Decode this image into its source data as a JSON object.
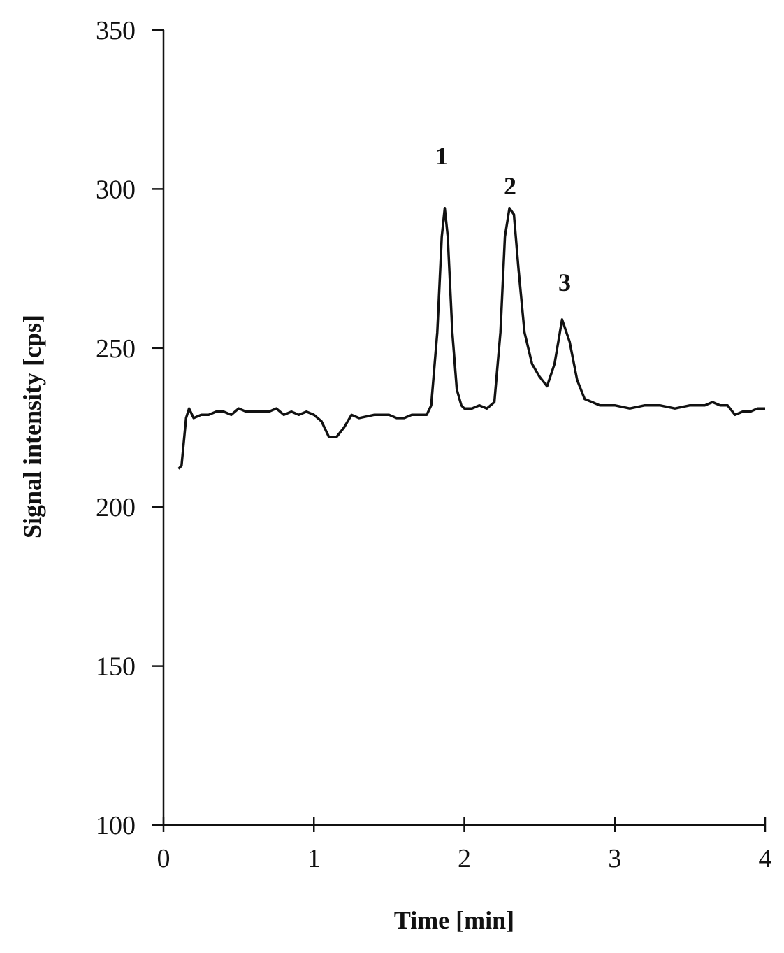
{
  "chart_data": {
    "type": "line",
    "x_label": "Time [min]",
    "y_label": "Signal intensity [cps]",
    "annotations": [
      "1",
      "2",
      "3"
    ],
    "xlim": [
      0,
      4
    ],
    "xticks": [
      0,
      1,
      2,
      3,
      4
    ],
    "ylim": [
      100,
      350
    ],
    "yticks": [
      100,
      150,
      200,
      250,
      300,
      350
    ],
    "grid": false,
    "series": [
      {
        "color": "#111111",
        "x": [
          0.1,
          0.12,
          0.15,
          0.17,
          0.2,
          0.25,
          0.3,
          0.35,
          0.4,
          0.45,
          0.5,
          0.55,
          0.6,
          0.7,
          0.75,
          0.8,
          0.85,
          0.9,
          0.95,
          1.0,
          1.05,
          1.1,
          1.15,
          1.2,
          1.25,
          1.3,
          1.4,
          1.5,
          1.55,
          1.6,
          1.65,
          1.7,
          1.75,
          1.78,
          1.82,
          1.85,
          1.87,
          1.89,
          1.92,
          1.95,
          1.98,
          2.0,
          2.05,
          2.1,
          2.15,
          2.2,
          2.24,
          2.27,
          2.3,
          2.33,
          2.36,
          2.4,
          2.45,
          2.5,
          2.55,
          2.6,
          2.65,
          2.7,
          2.75,
          2.8,
          2.85,
          2.9,
          3.0,
          3.1,
          3.2,
          3.3,
          3.4,
          3.5,
          3.6,
          3.65,
          3.7,
          3.75,
          3.8,
          3.85,
          3.9,
          3.95,
          4.0
        ],
        "values": [
          212,
          213,
          228,
          231,
          228,
          229,
          229,
          230,
          230,
          229,
          231,
          230,
          230,
          230,
          231,
          229,
          230,
          229,
          230,
          229,
          227,
          222,
          222,
          225,
          229,
          228,
          229,
          229,
          228,
          228,
          229,
          229,
          229,
          232,
          255,
          285,
          294,
          285,
          255,
          237,
          232,
          231,
          231,
          232,
          231,
          233,
          255,
          285,
          294,
          292,
          275,
          255,
          245,
          241,
          238,
          245,
          259,
          252,
          240,
          234,
          233,
          232,
          232,
          231,
          232,
          232,
          231,
          232,
          232,
          233,
          232,
          232,
          229,
          230,
          230,
          231,
          231
        ]
      }
    ]
  }
}
